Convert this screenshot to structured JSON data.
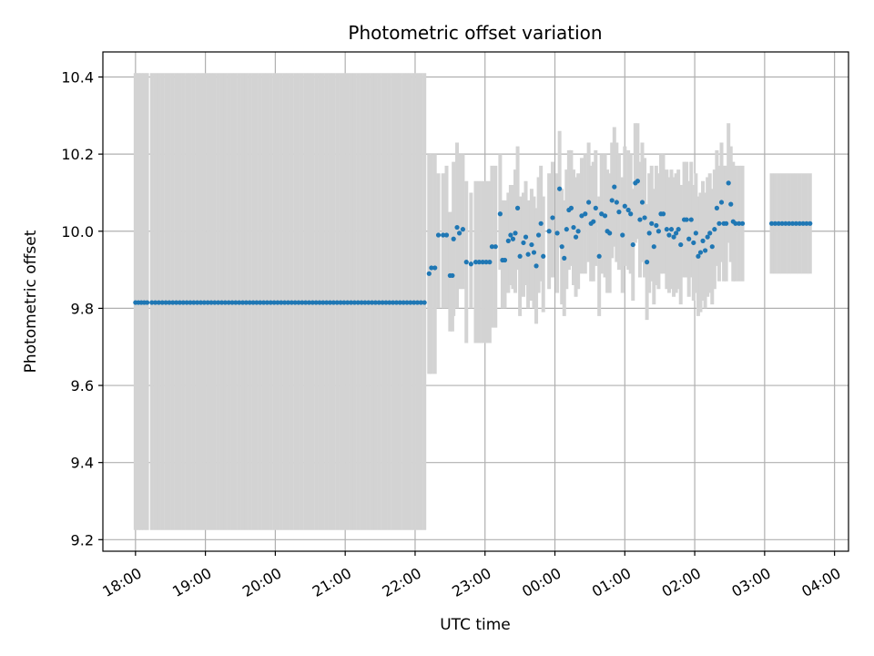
{
  "chart_data": {
    "type": "scatter",
    "title": "Photometric offset variation",
    "xlabel": "UTC time",
    "ylabel": "Photometric offset",
    "x_tick_labels": [
      "18:00",
      "19:00",
      "20:00",
      "21:00",
      "22:00",
      "23:00",
      "00:00",
      "01:00",
      "02:00",
      "03:00",
      "04:00"
    ],
    "y_ticks": [
      9.2,
      9.4,
      9.6,
      9.8,
      10.0,
      10.2,
      10.4
    ],
    "xlim": [
      "17:32",
      "04:12"
    ],
    "ylim": [
      9.17,
      10.465
    ],
    "grid": true,
    "colors": {
      "points": "#1f77b4",
      "error_bars": "#d3d3d3",
      "grid": "#b0b0b0",
      "axes": "#000000"
    },
    "segments": [
      {
        "start": "18:00",
        "end": "18:10",
        "y": 9.815,
        "err_low": 9.225,
        "err_high": 10.41,
        "step_min": 2.5
      },
      {
        "start": "18:14",
        "end": "22:10",
        "y": 9.815,
        "err_low": 9.225,
        "err_high": 10.41,
        "step_min": 3.0
      },
      {
        "start": "03:06",
        "end": "03:40",
        "y": 10.02,
        "err_low": 9.89,
        "err_high": 10.15,
        "step_min": 3.0
      }
    ],
    "points": [
      [
        "22:12",
        9.89,
        9.63,
        10.2
      ],
      [
        "22:14",
        9.905,
        9.63,
        10.2
      ],
      [
        "22:17",
        9.905,
        9.63,
        10.2
      ],
      [
        "22:20",
        9.99,
        9.8,
        10.15
      ],
      [
        "22:24",
        9.99,
        9.8,
        10.15
      ],
      [
        "22:27",
        9.99,
        9.8,
        10.17
      ],
      [
        "22:30",
        9.885,
        9.74,
        10.05
      ],
      [
        "22:32",
        9.885,
        9.74,
        10.05
      ],
      [
        "22:33",
        9.98,
        9.78,
        10.18
      ],
      [
        "22:36",
        10.01,
        9.8,
        10.23
      ],
      [
        "22:38",
        9.995,
        9.85,
        10.2
      ],
      [
        "22:41",
        10.005,
        9.85,
        10.2
      ],
      [
        "22:44",
        9.92,
        9.71,
        10.13
      ],
      [
        "22:48",
        9.915,
        9.8,
        10.1
      ],
      [
        "22:52",
        9.92,
        9.71,
        10.13
      ],
      [
        "22:55",
        9.92,
        9.71,
        10.13
      ],
      [
        "22:58",
        9.92,
        9.71,
        10.13
      ],
      [
        "23:01",
        9.92,
        9.71,
        10.13
      ],
      [
        "23:04",
        9.92,
        9.71,
        10.13
      ],
      [
        "23:06",
        9.96,
        9.75,
        10.17
      ],
      [
        "23:09",
        9.96,
        9.75,
        10.17
      ],
      [
        "23:13",
        10.045,
        9.9,
        10.2
      ],
      [
        "23:15",
        9.925,
        9.8,
        10.08
      ],
      [
        "23:17",
        9.925,
        9.8,
        10.08
      ],
      [
        "23:20",
        9.975,
        9.84,
        10.1
      ],
      [
        "23:22",
        9.99,
        9.86,
        10.12
      ],
      [
        "23:24",
        9.98,
        9.85,
        10.12
      ],
      [
        "23:26",
        9.995,
        9.84,
        10.16
      ],
      [
        "23:28",
        10.06,
        9.9,
        10.22
      ],
      [
        "23:30",
        9.935,
        9.78,
        10.09
      ],
      [
        "23:33",
        9.97,
        9.83,
        10.1
      ],
      [
        "23:35",
        9.985,
        9.86,
        10.13
      ],
      [
        "23:37",
        9.94,
        9.8,
        10.08
      ],
      [
        "23:40",
        9.965,
        9.82,
        10.11
      ],
      [
        "23:42",
        9.945,
        9.8,
        10.09
      ],
      [
        "23:44",
        9.91,
        9.76,
        10.06
      ],
      [
        "23:46",
        9.99,
        9.84,
        10.14
      ],
      [
        "23:48",
        10.02,
        9.87,
        10.17
      ],
      [
        "23:50",
        9.935,
        9.79,
        10.09
      ],
      [
        "23:55",
        10.0,
        9.85,
        10.15
      ],
      [
        "23:58",
        10.035,
        9.88,
        10.18
      ],
      [
        "00:02",
        9.995,
        9.84,
        10.15
      ],
      [
        "00:04",
        10.11,
        9.96,
        10.26
      ],
      [
        "00:06",
        9.96,
        9.81,
        10.11
      ],
      [
        "00:08",
        9.93,
        9.78,
        10.08
      ],
      [
        "00:10",
        10.005,
        9.85,
        10.16
      ],
      [
        "00:12",
        10.055,
        9.9,
        10.21
      ],
      [
        "00:14",
        10.06,
        9.91,
        10.21
      ],
      [
        "00:16",
        10.01,
        9.86,
        10.16
      ],
      [
        "00:18",
        9.985,
        9.83,
        10.14
      ],
      [
        "00:20",
        10.0,
        9.85,
        10.15
      ],
      [
        "00:23",
        10.04,
        9.89,
        10.19
      ],
      [
        "00:26",
        10.045,
        9.89,
        10.2
      ],
      [
        "00:29",
        10.075,
        9.92,
        10.23
      ],
      [
        "00:31",
        10.02,
        9.87,
        10.17
      ],
      [
        "00:33",
        10.025,
        9.87,
        10.18
      ],
      [
        "00:35",
        10.06,
        9.91,
        10.21
      ],
      [
        "00:38",
        9.935,
        9.78,
        10.09
      ],
      [
        "00:40",
        10.045,
        9.89,
        10.2
      ],
      [
        "00:43",
        10.04,
        9.88,
        10.2
      ],
      [
        "00:45",
        10.0,
        9.84,
        10.16
      ],
      [
        "00:47",
        9.995,
        9.84,
        10.15
      ],
      [
        "00:49",
        10.08,
        9.93,
        10.23
      ],
      [
        "00:51",
        10.115,
        9.96,
        10.27
      ],
      [
        "00:53",
        10.075,
        9.92,
        10.23
      ],
      [
        "00:55",
        10.05,
        9.9,
        10.2
      ],
      [
        "00:58",
        9.99,
        9.84,
        10.14
      ],
      [
        "01:00",
        10.065,
        9.91,
        10.22
      ],
      [
        "01:03",
        10.055,
        9.9,
        10.21
      ],
      [
        "01:05",
        10.045,
        9.89,
        10.2
      ],
      [
        "01:07",
        9.965,
        9.82,
        10.11
      ],
      [
        "01:09",
        10.125,
        9.97,
        10.28
      ],
      [
        "01:11",
        10.13,
        9.98,
        10.28
      ],
      [
        "01:13",
        10.03,
        9.88,
        10.18
      ],
      [
        "01:15",
        10.075,
        9.92,
        10.23
      ],
      [
        "01:17",
        10.035,
        9.88,
        10.19
      ],
      [
        "01:19",
        9.92,
        9.77,
        10.07
      ],
      [
        "01:21",
        9.995,
        9.84,
        10.15
      ],
      [
        "01:23",
        10.02,
        9.87,
        10.17
      ],
      [
        "01:25",
        9.96,
        9.81,
        10.11
      ],
      [
        "01:27",
        10.015,
        9.86,
        10.17
      ],
      [
        "01:29",
        10.0,
        9.85,
        10.15
      ],
      [
        "01:31",
        10.045,
        9.89,
        10.2
      ],
      [
        "01:33",
        10.045,
        9.89,
        10.2
      ],
      [
        "01:36",
        10.005,
        9.85,
        10.16
      ],
      [
        "01:38",
        9.99,
        9.84,
        10.14
      ],
      [
        "01:40",
        10.005,
        9.85,
        10.16
      ],
      [
        "01:42",
        9.985,
        9.83,
        10.14
      ],
      [
        "01:44",
        9.995,
        9.84,
        10.15
      ],
      [
        "01:46",
        10.005,
        9.85,
        10.16
      ],
      [
        "01:48",
        9.965,
        9.81,
        10.12
      ],
      [
        "01:51",
        10.03,
        9.88,
        10.18
      ],
      [
        "01:53",
        10.03,
        9.88,
        10.18
      ],
      [
        "01:55",
        9.98,
        9.83,
        10.13
      ],
      [
        "01:57",
        10.03,
        9.88,
        10.18
      ],
      [
        "01:59",
        9.97,
        9.82,
        10.12
      ],
      [
        "02:01",
        9.995,
        9.84,
        10.15
      ],
      [
        "02:03",
        9.935,
        9.78,
        10.09
      ],
      [
        "02:05",
        9.945,
        9.79,
        10.1
      ],
      [
        "02:07",
        9.975,
        9.82,
        10.13
      ],
      [
        "02:09",
        9.95,
        9.8,
        10.1
      ],
      [
        "02:11",
        9.985,
        9.83,
        10.14
      ],
      [
        "02:13",
        9.995,
        9.84,
        10.15
      ],
      [
        "02:15",
        9.96,
        9.81,
        10.11
      ],
      [
        "02:17",
        10.005,
        9.85,
        10.16
      ],
      [
        "02:19",
        10.06,
        9.91,
        10.21
      ],
      [
        "02:21",
        10.02,
        9.87,
        10.17
      ],
      [
        "02:23",
        10.075,
        9.92,
        10.23
      ],
      [
        "02:25",
        10.02,
        9.87,
        10.17
      ],
      [
        "02:27",
        10.02,
        9.87,
        10.17
      ],
      [
        "02:29",
        10.125,
        9.97,
        10.28
      ],
      [
        "02:31",
        10.07,
        9.92,
        10.22
      ],
      [
        "02:33",
        10.025,
        9.87,
        10.18
      ],
      [
        "02:35",
        10.02,
        9.87,
        10.17
      ],
      [
        "02:38",
        10.02,
        9.87,
        10.17
      ],
      [
        "02:41",
        10.02,
        9.87,
        10.17
      ]
    ]
  }
}
